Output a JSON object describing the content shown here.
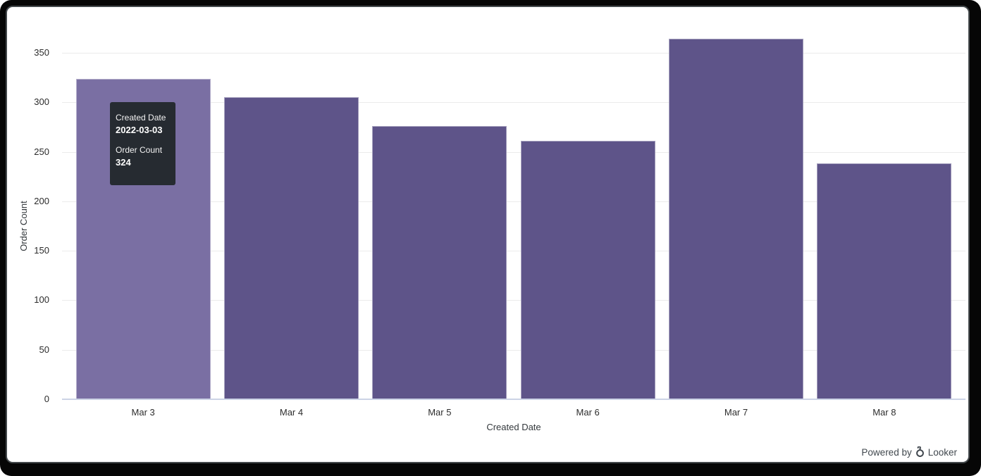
{
  "chart_data": {
    "type": "bar",
    "categories": [
      "Mar 3",
      "Mar 4",
      "Mar 5",
      "Mar 6",
      "Mar 7",
      "Mar 8"
    ],
    "values": [
      324,
      305,
      276,
      261,
      364,
      238
    ],
    "title": "",
    "xlabel": "Created Date",
    "ylabel": "Order Count",
    "ylim": [
      0,
      350
    ],
    "yticks": [
      0,
      50,
      100,
      150,
      200,
      250,
      300,
      350
    ],
    "grid": true,
    "legend": "none",
    "bar_color": "#5e5489",
    "bar_hover_color": "#7a6fa3",
    "hovered_index": 0
  },
  "tooltip": {
    "dimension_label": "Created Date",
    "dimension_value": "2022-03-03",
    "measure_label": "Order Count",
    "measure_value": "324"
  },
  "footer": {
    "powered_by": "Powered by",
    "brand": "Looker",
    "text_color": "#41484e"
  }
}
